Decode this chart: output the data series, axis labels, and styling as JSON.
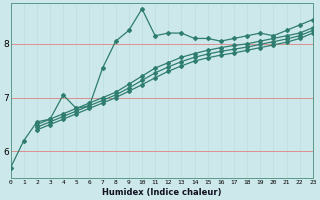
{
  "xlabel": "Humidex (Indice chaleur)",
  "ylabel": "",
  "bg_color": "#cde8ea",
  "line_color": "#2e7d6e",
  "grid_color_v": "#c0dfe0",
  "grid_color_h": "#e08080",
  "xmin": 0,
  "xmax": 23,
  "ymin": 5.5,
  "ymax": 8.75,
  "jagged_x": [
    0,
    1,
    2,
    3,
    4,
    5,
    6,
    7,
    8,
    9,
    10,
    11,
    12,
    13,
    14,
    15,
    16,
    17,
    18,
    19,
    20,
    21,
    22,
    23
  ],
  "jagged_y": [
    5.7,
    6.2,
    6.55,
    6.6,
    7.05,
    6.8,
    6.85,
    7.55,
    8.05,
    8.25,
    8.65,
    8.15,
    8.2,
    8.2,
    8.1,
    8.1,
    8.05,
    8.1,
    8.15,
    8.2,
    8.15,
    8.25,
    8.35,
    8.45
  ],
  "straight1_x": [
    2,
    3,
    4,
    5,
    6,
    7,
    8,
    9,
    10,
    11,
    12,
    13,
    14,
    15,
    16,
    17,
    18,
    19,
    20,
    21,
    22,
    23
  ],
  "straight1_y": [
    6.5,
    6.6,
    6.7,
    6.8,
    6.9,
    7.0,
    7.1,
    7.25,
    7.4,
    7.55,
    7.65,
    7.75,
    7.82,
    7.88,
    7.93,
    7.97,
    8.0,
    8.05,
    8.1,
    8.15,
    8.2,
    8.3
  ],
  "straight2_x": [
    2,
    3,
    4,
    5,
    6,
    7,
    8,
    9,
    10,
    11,
    12,
    13,
    14,
    15,
    16,
    17,
    18,
    19,
    20,
    21,
    22,
    23
  ],
  "straight2_y": [
    6.45,
    6.55,
    6.65,
    6.75,
    6.85,
    6.95,
    7.05,
    7.18,
    7.32,
    7.46,
    7.57,
    7.67,
    7.75,
    7.81,
    7.86,
    7.9,
    7.94,
    7.99,
    8.04,
    8.09,
    8.15,
    8.25
  ],
  "straight3_x": [
    2,
    3,
    4,
    5,
    6,
    7,
    8,
    9,
    10,
    11,
    12,
    13,
    14,
    15,
    16,
    17,
    18,
    19,
    20,
    21,
    22,
    23
  ],
  "straight3_y": [
    6.4,
    6.5,
    6.6,
    6.7,
    6.8,
    6.9,
    7.0,
    7.12,
    7.24,
    7.37,
    7.49,
    7.59,
    7.68,
    7.74,
    7.79,
    7.83,
    7.88,
    7.93,
    7.98,
    8.03,
    8.1,
    8.2
  ],
  "yticks": [
    6,
    7,
    8
  ],
  "xticks": [
    0,
    1,
    2,
    3,
    4,
    5,
    6,
    7,
    8,
    9,
    10,
    11,
    12,
    13,
    14,
    15,
    16,
    17,
    18,
    19,
    20,
    21,
    22,
    23
  ]
}
